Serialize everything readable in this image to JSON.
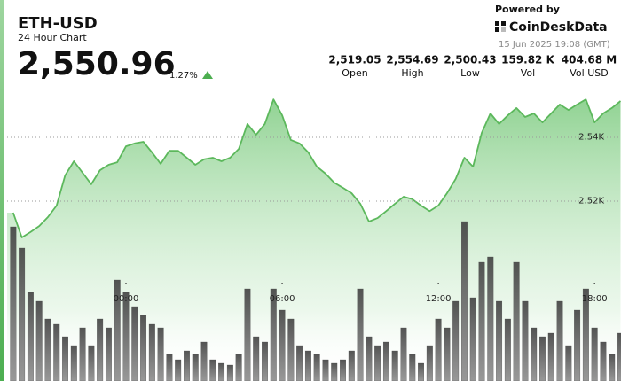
{
  "header": {
    "symbol": "ETH-USD",
    "subtitle": "24 Hour Chart",
    "price": "2,550.96",
    "change": "1.27%",
    "powered_by": "Powered by",
    "brand": "CoinDeskData",
    "timestamp": "15 Jun 2025 19:08 (GMT)"
  },
  "stats": [
    {
      "value": "2,519.05",
      "label": "Open"
    },
    {
      "value": "2,554.69",
      "label": "High"
    },
    {
      "value": "2,500.43",
      "label": "Low"
    },
    {
      "value": "159.82 K",
      "label": "Vol"
    },
    {
      "value": "404.68 M",
      "label": "Vol USD"
    }
  ],
  "chart_data": {
    "type": "line",
    "x": [
      -260,
      -240,
      -220,
      -200,
      -180,
      -160,
      -140,
      -120,
      -100,
      -80,
      -60,
      -40,
      -20,
      0,
      20,
      40,
      60,
      80,
      100,
      120,
      140,
      160,
      180,
      200,
      220,
      240,
      260,
      280,
      300,
      320,
      340,
      360,
      380,
      400,
      420,
      440,
      460,
      480,
      500,
      520,
      540,
      560,
      580,
      600,
      620,
      640,
      660,
      680,
      700,
      720,
      740,
      760,
      780,
      800,
      820,
      840,
      860,
      880,
      900,
      920,
      940,
      960,
      980,
      1000,
      1020,
      1040,
      1060,
      1080,
      1100,
      1120,
      1140
    ],
    "series": [
      {
        "type": "area",
        "color": "#5cb85c",
        "values": [
          2516.4,
          2508.6,
          2510.3,
          2512.2,
          2515.0,
          2518.6,
          2528.1,
          2532.5,
          2528.9,
          2525.3,
          2529.7,
          2531.4,
          2532.2,
          2537.2,
          2538.1,
          2538.6,
          2535.3,
          2531.7,
          2535.8,
          2535.8,
          2533.6,
          2531.4,
          2533.1,
          2533.6,
          2532.5,
          2533.6,
          2536.4,
          2544.2,
          2540.8,
          2544.2,
          2551.9,
          2546.9,
          2539.2,
          2538.1,
          2535.3,
          2530.8,
          2528.6,
          2525.8,
          2524.2,
          2522.5,
          2519.2,
          2513.6,
          2514.7,
          2516.9,
          2519.2,
          2521.4,
          2520.6,
          2518.6,
          2516.9,
          2518.6,
          2522.5,
          2527.0,
          2533.6,
          2530.8,
          2541.4,
          2547.5,
          2544.2,
          2546.9,
          2549.2,
          2546.4,
          2547.5,
          2544.7,
          2547.5,
          2550.3,
          2548.6,
          2550.3,
          2551.9,
          2544.7,
          2547.5,
          2549.2,
          2551.4
        ]
      },
      {
        "type": "bar",
        "axis": "y2",
        "color": "#4a4a4a",
        "values": [
          87,
          75,
          50,
          45,
          35,
          32,
          25,
          20,
          30,
          20,
          35,
          30,
          57,
          50,
          42,
          37,
          32,
          30,
          15,
          12,
          17,
          15,
          22,
          12,
          10,
          9,
          15,
          52,
          25,
          22,
          52,
          40,
          35,
          20,
          17,
          15,
          12,
          10,
          12,
          17,
          52,
          25,
          20,
          22,
          17,
          30,
          15,
          10,
          20,
          35,
          30,
          45,
          90,
          47,
          67,
          70,
          45,
          35,
          67,
          45,
          30,
          25,
          27,
          45,
          20,
          40,
          52,
          30,
          22,
          15,
          27
        ]
      }
    ],
    "xlim": [
      -274,
      1141
    ],
    "xticks": [
      {
        "value": 0,
        "label": "00:00"
      },
      {
        "value": 360,
        "label": "06:00"
      },
      {
        "value": 720,
        "label": "12:00"
      },
      {
        "value": 1080,
        "label": "18:00"
      }
    ],
    "ylim": [
      2463.6,
      2558.06
    ],
    "yticks": [
      {
        "value": 2520,
        "label": "2.52K"
      },
      {
        "value": 2540,
        "label": "2.54K"
      }
    ],
    "y2lim": [
      0,
      100
    ],
    "grid": true
  }
}
